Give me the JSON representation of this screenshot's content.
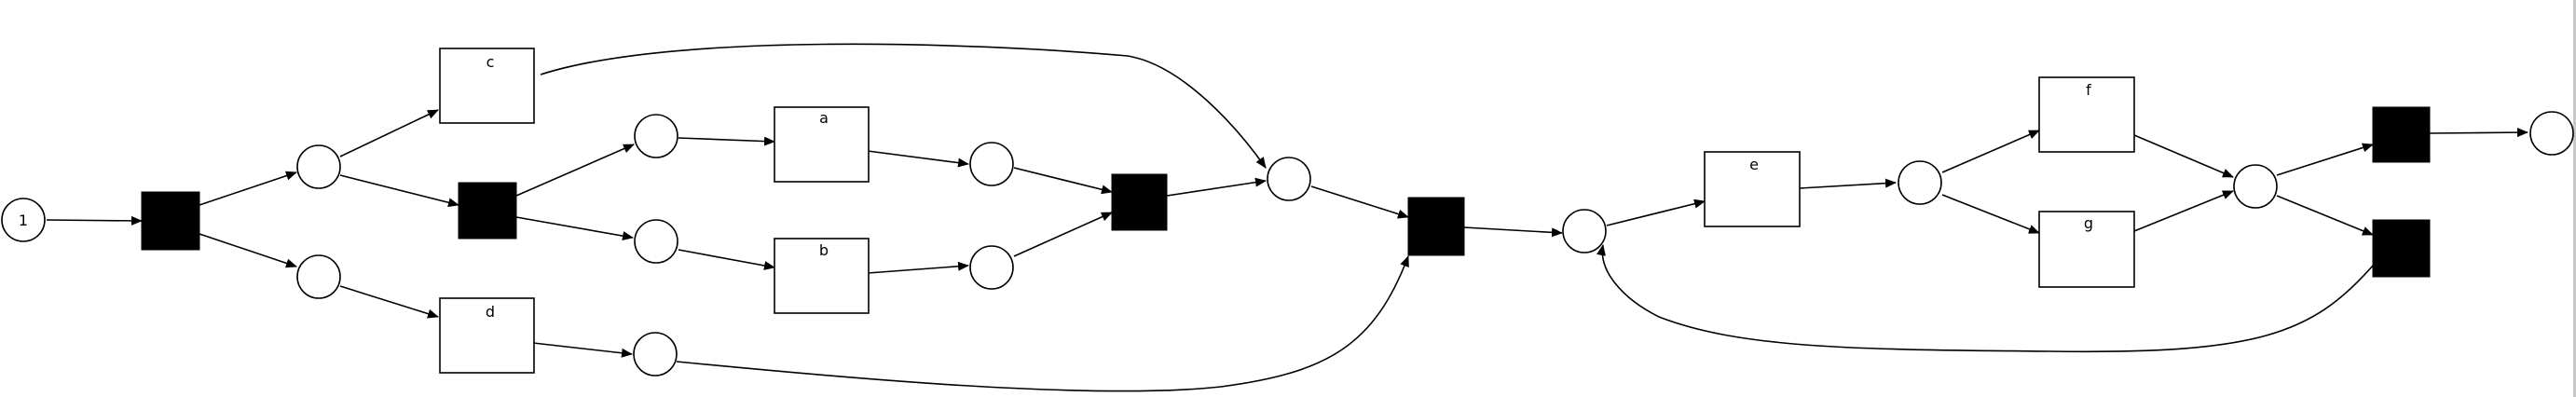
{
  "diagram": {
    "places": [
      {
        "id": "p-start",
        "token_label": "1"
      },
      {
        "id": "p1"
      },
      {
        "id": "p2"
      },
      {
        "id": "p3"
      },
      {
        "id": "p4"
      },
      {
        "id": "p5"
      },
      {
        "id": "p6"
      },
      {
        "id": "p7"
      },
      {
        "id": "p8"
      },
      {
        "id": "p9"
      },
      {
        "id": "p10"
      },
      {
        "id": "p11"
      },
      {
        "id": "p12"
      },
      {
        "id": "p-end"
      }
    ],
    "transitions": [
      {
        "id": "c",
        "label": "c"
      },
      {
        "id": "d",
        "label": "d"
      },
      {
        "id": "a",
        "label": "a"
      },
      {
        "id": "b",
        "label": "b"
      },
      {
        "id": "e",
        "label": "e"
      },
      {
        "id": "f",
        "label": "f"
      },
      {
        "id": "g",
        "label": "g"
      }
    ],
    "colors": {
      "stroke": "#000000",
      "silent_fill": "#000000",
      "node_fill": "#ffffff"
    }
  }
}
